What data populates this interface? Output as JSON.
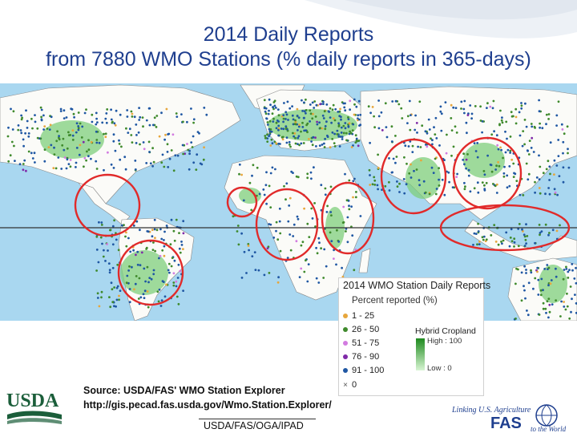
{
  "title": {
    "line1": "2014 Daily Reports",
    "line2": "from 7880 WMO Stations (% daily reports in 365-days)"
  },
  "legend": {
    "title": "2014 WMO Station Daily Reports",
    "subtitle": "Percent reported (%)",
    "classes": [
      {
        "label": "1 - 25",
        "color": "#e7a63c"
      },
      {
        "label": "26 - 50",
        "color": "#3f8a2c"
      },
      {
        "label": "51 - 75",
        "color": "#d27be0"
      },
      {
        "label": "76 - 90",
        "color": "#7f2aa8"
      },
      {
        "label": "91 - 100",
        "color": "#1f57a3"
      },
      {
        "label": "0",
        "color": "#666666",
        "icon": "x-mark-icon"
      }
    ],
    "cropland": {
      "title": "Hybrid Cropland",
      "high": "High : 100",
      "low": "Low : 0"
    }
  },
  "source": {
    "line1": "Source: USDA/FAS' WMO Station Explorer",
    "line2": "http://gis.pecad.fas.usda.gov/Wmo.Station.Explorer/"
  },
  "footer": "USDA/FAS/OGA/IPAD",
  "logos": {
    "usda": "USDA",
    "fas_tagline": "Linking U.S. Agriculture",
    "fas_name": "FAS",
    "fas_tagline2": "to the World"
  },
  "colors": {
    "title": "#1f3f8f",
    "ocean": "#a9d7f0",
    "land": "#fbfbf8",
    "circle": "#e12a2a",
    "equator": "#333333"
  }
}
